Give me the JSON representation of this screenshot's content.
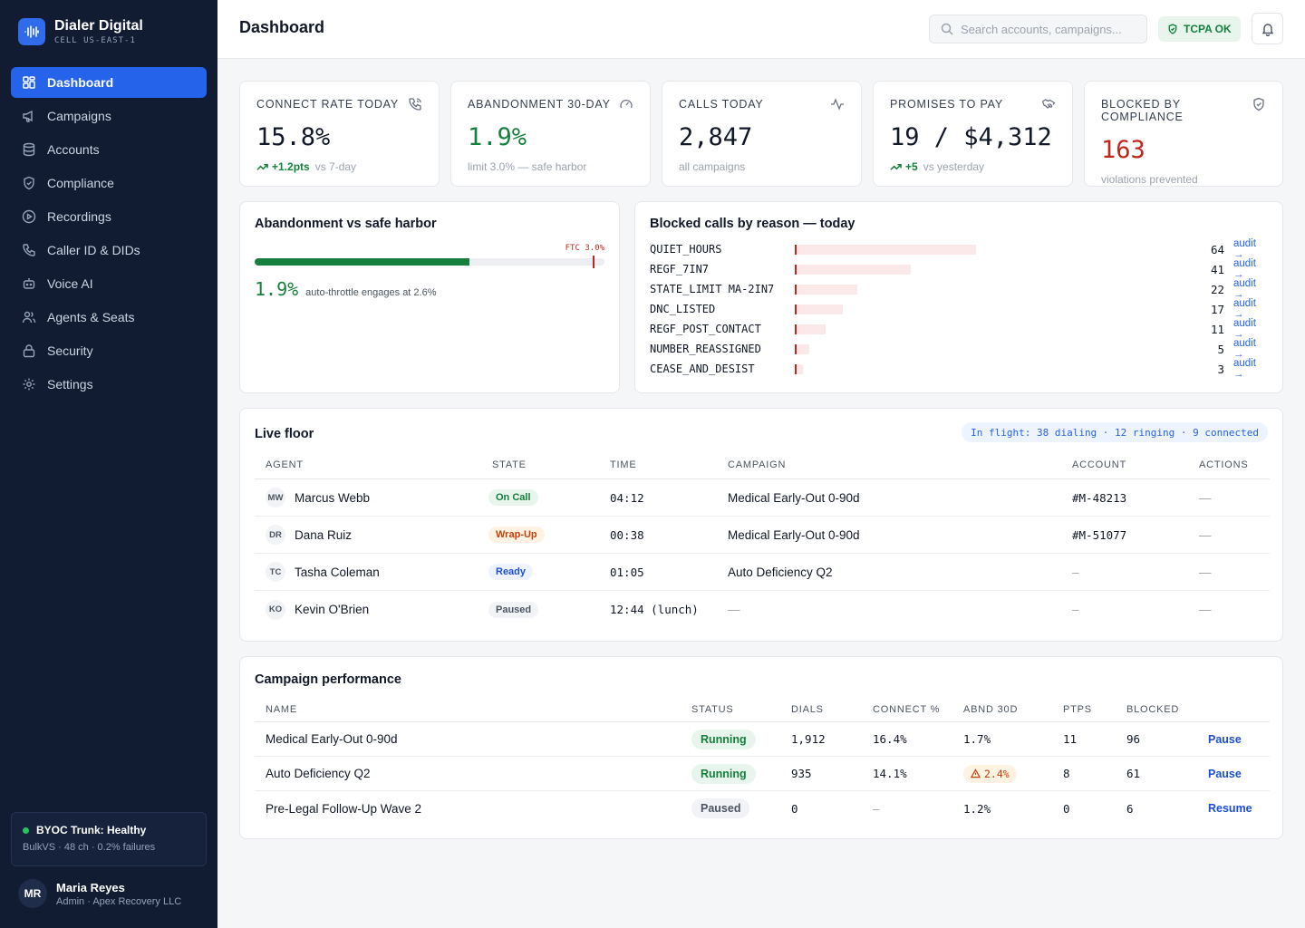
{
  "app": {
    "name": "Dialer Digital",
    "cell": "CELL US-EAST-1"
  },
  "nav": [
    {
      "label": "Dashboard",
      "icon": "grid-icon",
      "active": true
    },
    {
      "label": "Campaigns",
      "icon": "megaphone-icon"
    },
    {
      "label": "Accounts",
      "icon": "database-icon"
    },
    {
      "label": "Compliance",
      "icon": "shield-icon"
    },
    {
      "label": "Recordings",
      "icon": "play-circle-icon"
    },
    {
      "label": "Caller ID & DIDs",
      "icon": "phone-icon"
    },
    {
      "label": "Voice AI",
      "icon": "bot-icon"
    },
    {
      "label": "Agents & Seats",
      "icon": "users-icon"
    },
    {
      "label": "Security",
      "icon": "lock-icon"
    },
    {
      "label": "Settings",
      "icon": "gear-icon"
    }
  ],
  "trunk": {
    "title": "BYOC Trunk: Healthy",
    "sub": "BulkVS · 48 ch · 0.2% failures"
  },
  "user": {
    "initials": "MR",
    "name": "Maria Reyes",
    "role": "Admin · Apex Recovery LLC"
  },
  "header": {
    "title": "Dashboard",
    "search_placeholder": "Search accounts, campaigns...",
    "tcpa": "TCPA OK"
  },
  "kpis": [
    {
      "label": "CONNECT RATE TODAY",
      "value": "15.8%",
      "delta": "+1.2pts",
      "sub": "vs 7-day",
      "icon": "phone-call-icon"
    },
    {
      "label": "ABANDONMENT 30-DAY",
      "value": "1.9%",
      "sub": "limit 3.0% — safe harbor",
      "icon": "gauge-icon"
    },
    {
      "label": "CALLS TODAY",
      "value": "2,847",
      "sub": "all campaigns",
      "icon": "activity-icon"
    },
    {
      "label": "PROMISES TO PAY",
      "value": "19 / $4,312",
      "delta": "+5",
      "sub": "vs yesterday",
      "icon": "handshake-icon"
    },
    {
      "label": "BLOCKED BY COMPLIANCE",
      "value": "163",
      "sub": "violations prevented",
      "icon": "shield-check-icon"
    }
  ],
  "abandonment": {
    "title": "Abandonment vs safe harbor",
    "ftc_label": "FTC 3.0%",
    "value": "1.9%",
    "value_num": 1.9,
    "limit": 3.0,
    "scale_max": 3.1,
    "note": "auto-throttle engages at 2.6%"
  },
  "blocked": {
    "title": "Blocked calls by reason — today",
    "audit_label": "audit →",
    "reasons": [
      {
        "code": "QUIET_HOURS",
        "count": 64
      },
      {
        "code": "REGF_7IN7",
        "count": 41
      },
      {
        "code": "STATE_LIMIT MA-2IN7",
        "count": 22
      },
      {
        "code": "DNC_LISTED",
        "count": 17
      },
      {
        "code": "REGF_POST_CONTACT",
        "count": 11
      },
      {
        "code": "NUMBER_REASSIGNED",
        "count": 5
      },
      {
        "code": "CEASE_AND_DESIST",
        "count": 3
      }
    ]
  },
  "live_floor": {
    "title": "Live floor",
    "in_flight": "In flight: 38 dialing · 12 ringing · 9 connected",
    "columns": [
      "AGENT",
      "STATE",
      "TIME",
      "CAMPAIGN",
      "ACCOUNT",
      "ACTIONS"
    ],
    "rows": [
      {
        "initials": "MW",
        "agent": "Marcus Webb",
        "state": "On Call",
        "state_bg": "#e8f5ec",
        "state_fg": "#15803d",
        "time": "04:12",
        "campaign": "Medical Early-Out 0-90d",
        "account": "#M-48213",
        "actions": "—"
      },
      {
        "initials": "DR",
        "agent": "Dana Ruiz",
        "state": "Wrap-Up",
        "state_bg": "#fef3e2",
        "state_fg": "#c2410c",
        "time": "00:38",
        "campaign": "Medical Early-Out 0-90d",
        "account": "#M-51077",
        "actions": "—"
      },
      {
        "initials": "TC",
        "agent": "Tasha Coleman",
        "state": "Ready",
        "state_bg": "#eef4ff",
        "state_fg": "#1d4ed8",
        "time": "01:05",
        "campaign": "Auto Deficiency Q2",
        "account": "—",
        "actions": "—"
      },
      {
        "initials": "KO",
        "agent": "Kevin O'Brien",
        "state": "Paused",
        "state_bg": "#f1f3f6",
        "state_fg": "#4b5563",
        "time": "12:44 (lunch)",
        "campaign": "—",
        "account": "—",
        "actions": "—"
      }
    ]
  },
  "campaigns": {
    "title": "Campaign performance",
    "columns": [
      "NAME",
      "STATUS",
      "DIALS",
      "CONNECT %",
      "ABND 30D",
      "PTPS",
      "BLOCKED"
    ],
    "rows": [
      {
        "name": "Medical Early-Out 0-90d",
        "status": "Running",
        "status_bg": "#e8f5ec",
        "status_fg": "#15803d",
        "dials": "1,912",
        "connect": "16.4%",
        "abnd": "1.7%",
        "abnd_warn": false,
        "ptps": "11",
        "blocked": "96",
        "action": "Pause"
      },
      {
        "name": "Auto Deficiency Q2",
        "status": "Running",
        "status_bg": "#e8f5ec",
        "status_fg": "#15803d",
        "dials": "935",
        "connect": "14.1%",
        "abnd": "2.4%",
        "abnd_warn": true,
        "ptps": "8",
        "blocked": "61",
        "action": "Pause"
      },
      {
        "name": "Pre-Legal Follow-Up Wave 2",
        "status": "Paused",
        "status_bg": "#f1f3f6",
        "status_fg": "#4b5563",
        "dials": "0",
        "connect": "—",
        "abnd": "1.2%",
        "abnd_warn": false,
        "ptps": "0",
        "blocked": "6",
        "action": "Resume"
      }
    ]
  }
}
